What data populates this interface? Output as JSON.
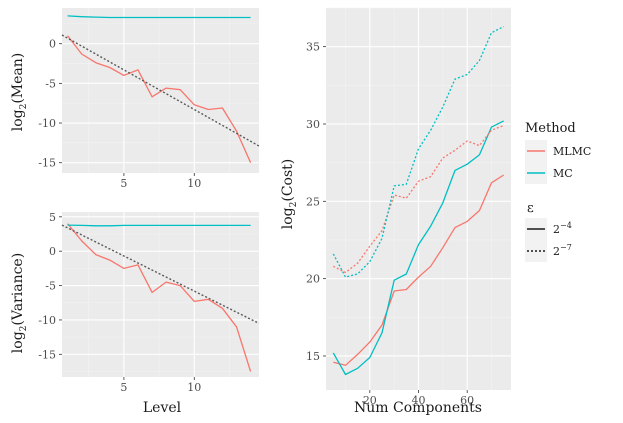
{
  "colors": {
    "panel_bg": "#ebebeb",
    "grid_major": "#ffffff",
    "grid_minor": "#f3f3f3",
    "mlmc": "#f8766d",
    "mc": "#00bfc4",
    "fit": "#595959",
    "tick_text": "#4d4d4d"
  },
  "legend": {
    "method_title": "Method",
    "methods": [
      {
        "label": "MLMC",
        "color_key": "mlmc"
      },
      {
        "label": "MC",
        "color_key": "mc"
      }
    ],
    "eps_title": "ε",
    "eps": [
      {
        "base": "2",
        "exp": "−4",
        "style": "solid"
      },
      {
        "base": "2",
        "exp": "−7",
        "style": "dotted"
      }
    ]
  },
  "chart_data": [
    {
      "id": "mean",
      "type": "line",
      "title": "",
      "xlabel": "",
      "ylabel": {
        "prefix": "log",
        "sub": "2",
        "suffix": "(Mean)"
      },
      "xlim": [
        0.6,
        14.6
      ],
      "ylim": [
        -16.3,
        4.5
      ],
      "xticks": [
        5,
        10
      ],
      "xtick_labels": [
        "5",
        "10"
      ],
      "yticks": [
        0,
        -5,
        -10,
        -15
      ],
      "ytick_labels": [
        "0",
        "-5",
        "-10",
        "-15"
      ],
      "series": [
        {
          "name": "MLMC",
          "color_key": "mlmc",
          "dash": "solid",
          "x": [
            1,
            2,
            3,
            4,
            5,
            6,
            7,
            8,
            9,
            10,
            11,
            12,
            13,
            14
          ],
          "y": [
            1.0,
            -1.3,
            -2.4,
            -3.0,
            -4.0,
            -3.3,
            -6.7,
            -5.6,
            -5.8,
            -7.7,
            -8.3,
            -8.1,
            -11.0,
            -15.0
          ]
        },
        {
          "name": "MC",
          "color_key": "mc",
          "dash": "solid",
          "x": [
            1,
            2,
            3,
            4,
            5,
            6,
            7,
            8,
            9,
            10,
            11,
            12,
            13,
            14
          ],
          "y": [
            3.5,
            3.4,
            3.35,
            3.3,
            3.3,
            3.3,
            3.3,
            3.3,
            3.3,
            3.3,
            3.3,
            3.3,
            3.3,
            3.3
          ]
        },
        {
          "name": "fit",
          "color_key": "fit",
          "dash": "dotted",
          "x": [
            0.6,
            14.6
          ],
          "y": [
            1.1,
            -12.9
          ]
        }
      ]
    },
    {
      "id": "variance",
      "type": "line",
      "title": "",
      "xlabel": "Level",
      "ylabel": {
        "prefix": "log",
        "sub": "2",
        "suffix": "(Variance)"
      },
      "xlim": [
        0.6,
        14.6
      ],
      "ylim": [
        -18.3,
        5.7
      ],
      "xticks": [
        5,
        10
      ],
      "xtick_labels": [
        "5",
        "10"
      ],
      "yticks": [
        5,
        0,
        -5,
        -10,
        -15
      ],
      "ytick_labels": [
        "5",
        "0",
        "-5",
        "-10",
        "-15"
      ],
      "series": [
        {
          "name": "MLMC",
          "color_key": "mlmc",
          "dash": "solid",
          "x": [
            1,
            2,
            3,
            4,
            5,
            6,
            7,
            8,
            9,
            10,
            11,
            12,
            13,
            14
          ],
          "y": [
            4.0,
            1.5,
            -0.5,
            -1.3,
            -2.5,
            -2.0,
            -6.0,
            -4.5,
            -5.0,
            -7.3,
            -7.0,
            -8.3,
            -11.0,
            -17.5
          ]
        },
        {
          "name": "MC",
          "color_key": "mc",
          "dash": "solid",
          "x": [
            1,
            2,
            3,
            4,
            5,
            6,
            7,
            8,
            9,
            10,
            11,
            12,
            13,
            14
          ],
          "y": [
            3.8,
            3.75,
            3.7,
            3.7,
            3.75,
            3.75,
            3.75,
            3.75,
            3.75,
            3.75,
            3.75,
            3.75,
            3.75,
            3.75
          ]
        },
        {
          "name": "fit",
          "color_key": "fit",
          "dash": "dotted",
          "x": [
            0.6,
            14.6
          ],
          "y": [
            3.8,
            -10.5
          ]
        }
      ]
    },
    {
      "id": "cost",
      "type": "line",
      "title": "",
      "xlabel": "Num Components",
      "ylabel": {
        "prefix": "log",
        "sub": "2",
        "suffix": "(Cost)"
      },
      "xlim": [
        2,
        78
      ],
      "ylim": [
        12.8,
        37.5
      ],
      "xticks": [
        20,
        40,
        60
      ],
      "xtick_labels": [
        "20",
        "40",
        "60"
      ],
      "yticks": [
        15,
        20,
        25,
        30,
        35
      ],
      "ytick_labels": [
        "15",
        "20",
        "25",
        "30",
        "35"
      ],
      "series": [
        {
          "name": "MLMC ε=2^-4",
          "color_key": "mlmc",
          "dash": "solid",
          "x": [
            5,
            10,
            15,
            20,
            25,
            30,
            35,
            40,
            45,
            50,
            55,
            60,
            65,
            70,
            75
          ],
          "y": [
            14.6,
            14.4,
            15.1,
            15.9,
            17.0,
            19.2,
            19.3,
            20.1,
            20.8,
            22.0,
            23.3,
            23.7,
            24.4,
            26.2,
            26.7
          ]
        },
        {
          "name": "MC ε=2^-4",
          "color_key": "mc",
          "dash": "solid",
          "x": [
            5,
            10,
            15,
            20,
            25,
            30,
            35,
            40,
            45,
            50,
            55,
            60,
            65,
            70,
            75
          ],
          "y": [
            15.2,
            13.8,
            14.2,
            14.9,
            16.5,
            19.9,
            20.3,
            22.2,
            23.4,
            24.9,
            27.0,
            27.4,
            28.0,
            29.8,
            30.2
          ]
        },
        {
          "name": "MLMC ε=2^-7",
          "color_key": "mlmc",
          "dash": "dotted",
          "x": [
            5,
            10,
            15,
            20,
            25,
            30,
            35,
            40,
            45,
            50,
            55,
            60,
            65,
            70,
            75
          ],
          "y": [
            20.8,
            20.4,
            21.0,
            22.1,
            23.1,
            25.4,
            25.2,
            26.3,
            26.6,
            27.8,
            28.3,
            28.9,
            28.6,
            29.6,
            29.9
          ]
        },
        {
          "name": "MC ε=2^-7",
          "color_key": "mc",
          "dash": "dotted",
          "x": [
            5,
            10,
            15,
            20,
            25,
            30,
            35,
            40,
            45,
            50,
            55,
            60,
            65,
            70,
            75
          ],
          "y": [
            21.6,
            20.1,
            20.3,
            21.1,
            22.6,
            26.0,
            26.1,
            28.4,
            29.6,
            31.1,
            32.9,
            33.2,
            34.1,
            35.9,
            36.3
          ]
        }
      ]
    }
  ]
}
